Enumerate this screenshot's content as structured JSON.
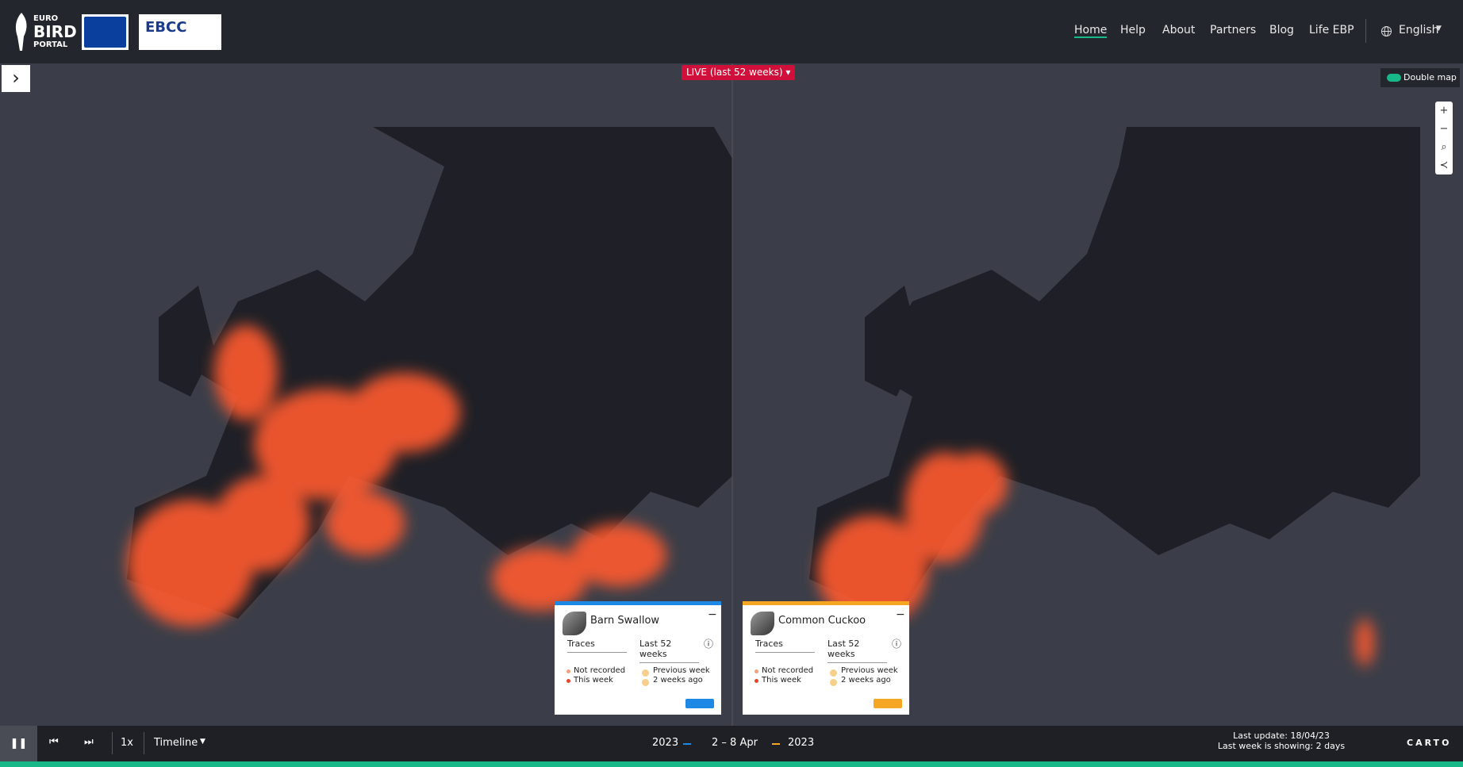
{
  "header": {
    "logo": [
      "EURO",
      "BIRD",
      "PORTAL"
    ],
    "ebcc": "EBCC",
    "nav": [
      "Home",
      "Help",
      "About",
      "Partners",
      "Blog",
      "Life EBP"
    ],
    "language": "English"
  },
  "live_badge": "LIVE (last 52 weeks)",
  "double_map": "Double map",
  "panels": [
    {
      "species": "Barn Swallow",
      "mode": "Traces",
      "period": "Last 52 weeks",
      "legend": [
        "Not recorded",
        "This week",
        "Previous week",
        "2 weeks ago"
      ]
    },
    {
      "species": "Common Cuckoo",
      "mode": "Traces",
      "period": "Last 52 weeks",
      "legend": [
        "Not recorded",
        "This week",
        "Previous week",
        "2 weeks ago"
      ]
    }
  ],
  "footer": {
    "speed": "1x",
    "timeline": "Timeline",
    "year_left": "2023",
    "week": "2 – 8 Apr",
    "year_right": "2023",
    "last_update": "Last update: 18/04/23",
    "showing": "Last week is showing: 2 days",
    "attribution": "CARTO"
  }
}
